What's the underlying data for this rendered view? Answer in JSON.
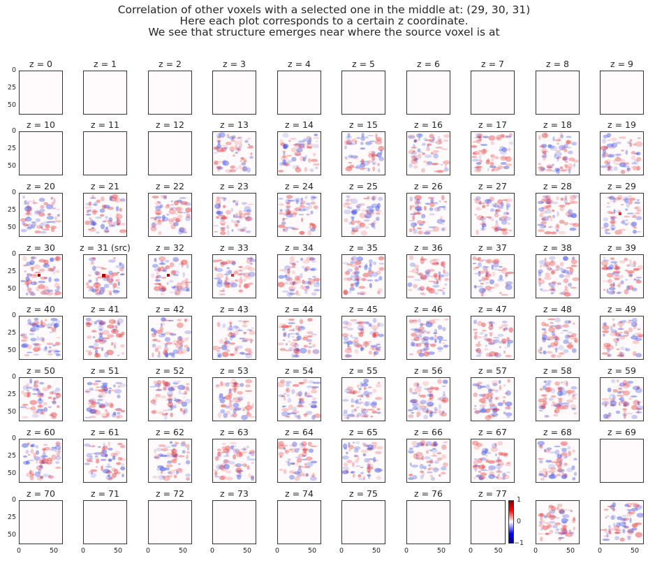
{
  "title": {
    "line1": "Correlation of other voxels with a selected one in the middle at: (29, 30, 31)",
    "line2": "Here each plot corresponds to a certain z coordinate.",
    "line3": "We see that structure emerges near where the source voxel is at"
  },
  "chart_data": {
    "type": "heatmap",
    "layout": {
      "rows": 8,
      "cols": 10
    },
    "source_voxel": [
      29,
      30,
      31
    ],
    "panel_titles": [
      "z = 0",
      "z = 1",
      "z = 2",
      "z = 3",
      "z = 4",
      "z = 5",
      "z = 6",
      "z = 7",
      "z = 8",
      "z = 9",
      "z = 10",
      "z = 11",
      "z = 12",
      "z = 13",
      "z = 14",
      "z = 15",
      "z = 16",
      "z = 17",
      "z = 18",
      "z = 19",
      "z = 20",
      "z = 21",
      "z = 22",
      "z = 23",
      "z = 24",
      "z = 25",
      "z = 26",
      "z = 27",
      "z = 28",
      "z = 29",
      "z = 30",
      "z = 31 (src)",
      "z = 32",
      "z = 33",
      "z = 34",
      "z = 35",
      "z = 36",
      "z = 37",
      "z = 38",
      "z = 39",
      "z = 40",
      "z = 41",
      "z = 42",
      "z = 43",
      "z = 44",
      "z = 45",
      "z = 46",
      "z = 47",
      "z = 48",
      "z = 49",
      "z = 50",
      "z = 51",
      "z = 52",
      "z = 53",
      "z = 54",
      "z = 55",
      "z = 56",
      "z = 57",
      "z = 58",
      "z = 59",
      "z = 60",
      "z = 61",
      "z = 62",
      "z = 63",
      "z = 64",
      "z = 65",
      "z = 66",
      "z = 67",
      "z = 68",
      "z = 69",
      "z = 70",
      "z = 71",
      "z = 72",
      "z = 73",
      "z = 74",
      "z = 75",
      "z = 76",
      "z = 77",
      "",
      ""
    ],
    "empty_panels": [
      0,
      1,
      2,
      3,
      4,
      5,
      6,
      7,
      8,
      9,
      10,
      11,
      12,
      69,
      70,
      71,
      72,
      73,
      74,
      75,
      76,
      77
    ],
    "hot_spot_panels": [
      29,
      30,
      31,
      32,
      33
    ],
    "y_ticks": [
      "0",
      "25",
      "50"
    ],
    "x_ticks": [
      "0",
      "50"
    ],
    "axis_range": [
      0,
      63
    ],
    "colorbar": {
      "ticks": [
        "1",
        "0",
        "−1"
      ],
      "range": [
        -1,
        1
      ],
      "cmap": "seismic"
    }
  }
}
